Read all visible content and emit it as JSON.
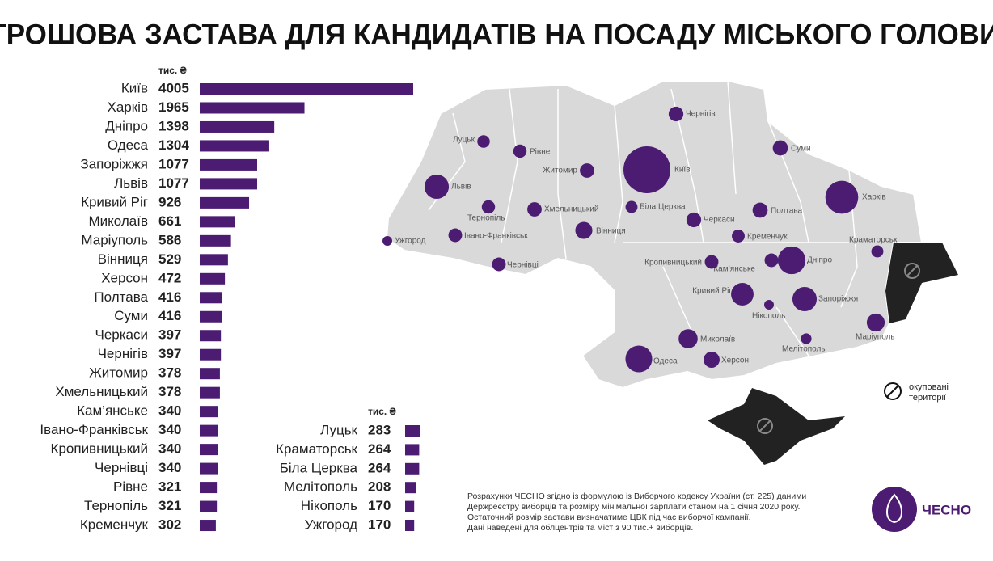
{
  "title": "ГРОШОВА ЗАСТАВА ДЛЯ КАНДИДАТІВ НА ПОСАДУ МІСЬКОГО ГОЛОВИ",
  "chart_data": [
    {
      "type": "bar",
      "orientation": "horizontal",
      "color": "#4b1c71",
      "unit_label": "тис. ₴",
      "categories": [
        "Київ",
        "Харків",
        "Дніпро",
        "Одеса",
        "Запоріжжя",
        "Львів",
        "Кривий Ріг",
        "Миколаїв",
        "Маріуполь",
        "Вінниця",
        "Херсон",
        "Полтава",
        "Суми",
        "Черкаси",
        "Чернігів",
        "Житомир",
        "Хмельницький",
        "Кам’янське",
        "Івано-Франківськ",
        "Кропивницький",
        "Чернівці",
        "Рівне",
        "Тернопіль",
        "Кременчук"
      ],
      "values": [
        4005,
        1965,
        1398,
        1304,
        1077,
        1077,
        926,
        661,
        586,
        529,
        472,
        416,
        416,
        397,
        397,
        378,
        378,
        340,
        340,
        340,
        340,
        321,
        321,
        302
      ]
    },
    {
      "type": "bar",
      "orientation": "horizontal",
      "color": "#4b1c71",
      "unit_label": "тис. ₴",
      "categories": [
        "Луцьк",
        "Краматорськ",
        "Біла Церква",
        "Мелітополь",
        "Нікополь",
        "Ужгород"
      ],
      "values": [
        283,
        264,
        264,
        208,
        170,
        170
      ]
    }
  ],
  "legend_label": [
    "окуповані",
    "території"
  ],
  "notes": [
    "Розрахунки ЧЕСНО згідно із формулою із Виборчого кодексу України (ст. 225) даними",
    "Держреєстру виборців та розміру мінімальної зарплати станом на 1 січня 2020 року.",
    "Остаточний розмір застави визначатиме ЦВК під час виборчої кампанії.",
    "Дані наведені для облцентрів та міст з 90 тис.+ виборців."
  ],
  "logo": "ЧЕСНО"
}
